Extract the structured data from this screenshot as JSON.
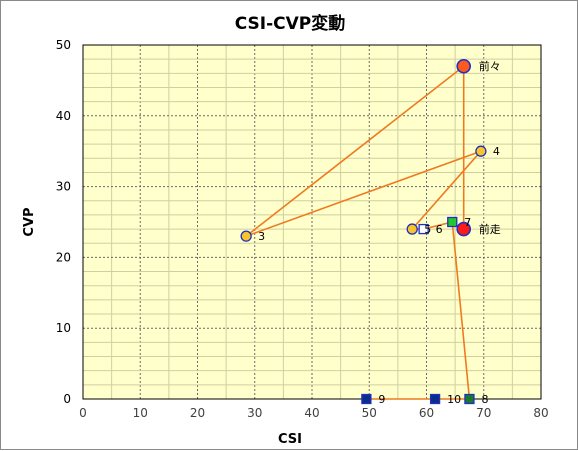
{
  "chart_data": {
    "type": "scatter",
    "title": "CSI-CVP変動",
    "xlabel": "CSI",
    "ylabel": "CVP",
    "xlim": [
      0,
      80
    ],
    "ylim": [
      0,
      50
    ],
    "xticks": [
      0,
      10,
      20,
      30,
      40,
      50,
      60,
      70,
      80
    ],
    "yticks": [
      0,
      10,
      20,
      30,
      40,
      50
    ],
    "grid": true,
    "line_color": "#f07a20",
    "plot_background": "#ffffcc",
    "points": [
      {
        "label": "前走",
        "x": 66.5,
        "y": 24,
        "marker": "circle",
        "fill": "#ff1a1a",
        "stroke": "#2030c0"
      },
      {
        "label": "前々",
        "x": 66.5,
        "y": 47,
        "marker": "circle",
        "fill": "#ff5a1e",
        "stroke": "#2030c0"
      },
      {
        "label": "3",
        "x": 28.5,
        "y": 23,
        "marker": "circle",
        "fill": "#f7c52a",
        "stroke": "#2030c0"
      },
      {
        "label": "4",
        "x": 69.5,
        "y": 35,
        "marker": "circle",
        "fill": "#f7c52a",
        "stroke": "#2030c0"
      },
      {
        "label": "5",
        "x": 57.5,
        "y": 24,
        "marker": "circle",
        "fill": "#f7c52a",
        "stroke": "#2030c0"
      },
      {
        "label": "6",
        "x": 59.5,
        "y": 24,
        "marker": "square",
        "fill": "#ffffff",
        "stroke": "#2030c0"
      },
      {
        "label": "7",
        "x": 64.5,
        "y": 25,
        "marker": "square",
        "fill": "#22c830",
        "stroke": "#2030c0"
      },
      {
        "label": "8",
        "x": 67.5,
        "y": 0,
        "marker": "square",
        "fill": "#1a7a2a",
        "stroke": "#2030c0"
      },
      {
        "label": "9",
        "x": 49.5,
        "y": 0,
        "marker": "square",
        "fill": "#0a2f8a",
        "stroke": "#2030c0"
      },
      {
        "label": "10",
        "x": 61.5,
        "y": 0,
        "marker": "square",
        "fill": "#0a2f8a",
        "stroke": "#2030c0"
      }
    ]
  }
}
